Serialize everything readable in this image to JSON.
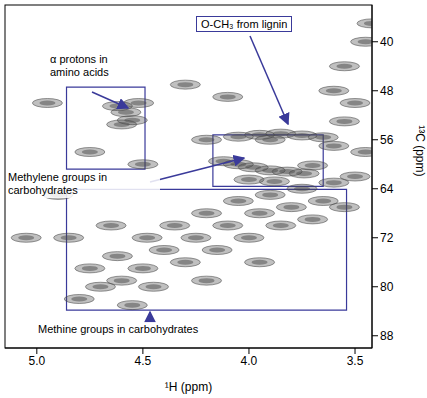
{
  "chart_data": {
    "type": "scatter",
    "x_label": "¹H (ppm)",
    "y_label": "¹³C (ppm)",
    "xlim": [
      5.15,
      3.42
    ],
    "ylim": [
      34,
      90
    ],
    "xticks": [
      {
        "value": 5.0,
        "label": "5.0"
      },
      {
        "value": 4.5,
        "label": "4.5"
      },
      {
        "value": 4.0,
        "label": "4.0"
      },
      {
        "value": 3.5,
        "label": "3.5"
      }
    ],
    "yticks": [
      40,
      48,
      56,
      64,
      72,
      80,
      88
    ],
    "color": "#4a4a4a",
    "x": [
      4.62,
      4.58,
      4.55,
      4.6,
      4.52,
      4.05,
      3.95,
      3.85,
      3.75,
      3.65,
      3.9,
      4.12,
      4.05,
      3.98,
      3.9,
      3.82,
      3.74,
      4.0,
      3.88,
      3.7,
      3.55,
      3.45,
      3.42,
      3.6,
      3.5,
      3.55,
      3.6,
      4.8,
      4.7,
      4.75,
      4.6,
      4.62,
      4.5,
      4.48,
      4.4,
      4.35,
      4.3,
      4.25,
      4.2,
      4.15,
      4.1,
      4.05,
      4.0,
      3.95,
      3.9,
      3.85,
      3.8,
      3.75,
      3.7,
      3.65,
      3.6,
      3.55,
      3.5,
      4.45,
      4.2,
      3.95,
      4.55,
      4.85,
      4.65,
      3.45,
      4.9,
      5.05,
      4.95,
      4.3,
      4.1,
      4.2,
      4.5,
      4.75
    ],
    "values": [
      50.5,
      51.5,
      52.8,
      53.5,
      50,
      55.5,
      55.2,
      55,
      55.3,
      55.6,
      56,
      59.5,
      60,
      60.5,
      61,
      61.2,
      61.5,
      62.5,
      62.8,
      60.2,
      44,
      40,
      37,
      48,
      50,
      53,
      57,
      82,
      80,
      77,
      79,
      75,
      77,
      72,
      74,
      70,
      76,
      72,
      68,
      74,
      70,
      66,
      72,
      68,
      65,
      70,
      67,
      64,
      69,
      66,
      63,
      67,
      62,
      80,
      79,
      76,
      83,
      72,
      70,
      58,
      65,
      72,
      50,
      47,
      49,
      56,
      60,
      58
    ],
    "regions": [
      {
        "label": "α protons in amino acids",
        "xlim": [
          4.86,
          4.49
        ],
        "ylim": [
          47.4,
          60.8
        ],
        "color": "#3a3a9a"
      },
      {
        "label": "Methylene groups in carbohydrates",
        "xlim": [
          4.17,
          3.65
        ],
        "ylim": [
          55.2,
          63.6
        ],
        "color": "#3a3a9a"
      },
      {
        "label": "Methine groups in carbohydrates",
        "xlim": [
          4.86,
          3.54
        ],
        "ylim": [
          64.1,
          83.8
        ],
        "color": "#3a3a9a"
      }
    ],
    "annotations": [
      "O-CH₃ from lignin"
    ]
  }
}
